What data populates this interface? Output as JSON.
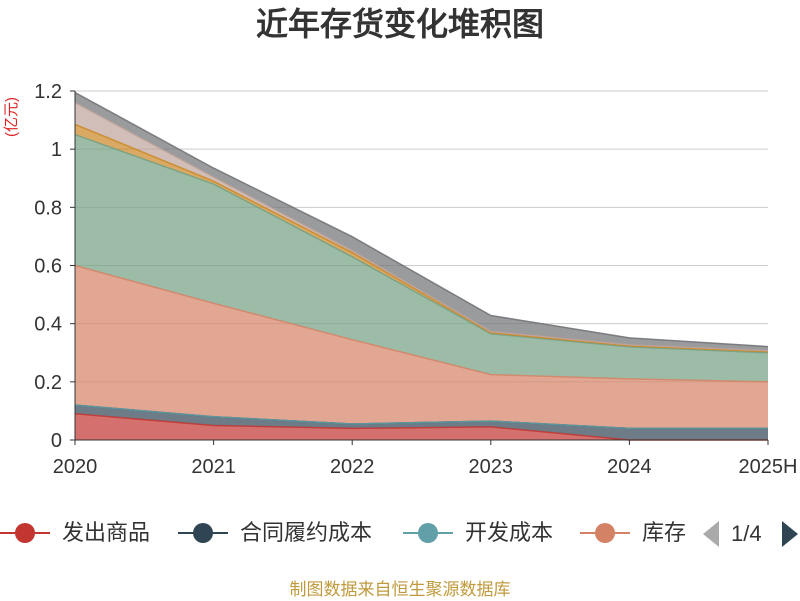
{
  "chart_data": {
    "type": "area",
    "stacked": true,
    "title": "近年存货变化堆积图",
    "xlabel": "",
    "ylabel": "(亿元)",
    "categories": [
      "2020",
      "2021",
      "2022",
      "2023",
      "2024",
      "2025H"
    ],
    "ylim": [
      0,
      1.2
    ],
    "yticks": [
      "0",
      "0.2",
      "0.4",
      "0.6",
      "0.8",
      "1",
      "1.2"
    ],
    "grid": true,
    "legend_position": "bottom",
    "series": [
      {
        "name": "发出商品",
        "color": "#c23531",
        "values": [
          0.09,
          0.05,
          0.04,
          0.045,
          0,
          0
        ]
      },
      {
        "name": "合同履约成本",
        "color": "#2f4554",
        "values": [
          0.03,
          0.03,
          0.015,
          0.02,
          0.04,
          0.04
        ]
      },
      {
        "name": "开发成本",
        "color": "#61a0a8",
        "values": [
          0,
          0,
          0,
          0,
          0,
          0
        ]
      },
      {
        "name": "库存",
        "color": "#d48265",
        "values": [
          0.48,
          0.39,
          0.29,
          0.16,
          0.17,
          0.16
        ]
      },
      {
        "color": "#749f83",
        "values": [
          0.45,
          0.41,
          0.285,
          0.14,
          0.11,
          0.1
        ]
      },
      {
        "color": "#ca8622",
        "values": [
          0.035,
          0.01,
          0.014,
          0.004,
          0.004,
          0.004
        ]
      },
      {
        "color": "#bda29a",
        "values": [
          0.075,
          0.014,
          0.007,
          0.004,
          0.003,
          0.003
        ]
      },
      {
        "color": "#6e7074",
        "values": [
          0.035,
          0.031,
          0.048,
          0.055,
          0.024,
          0.014
        ]
      }
    ]
  },
  "legend": {
    "pager": "1/4"
  },
  "footer": "制图数据来自恒生聚源数据库",
  "colors": {
    "title": "#333333",
    "axis_name": "#e02020",
    "footer": "#c09a3c",
    "pager_active": "#2f4554",
    "pager_disabled": "#aaaaaa"
  }
}
